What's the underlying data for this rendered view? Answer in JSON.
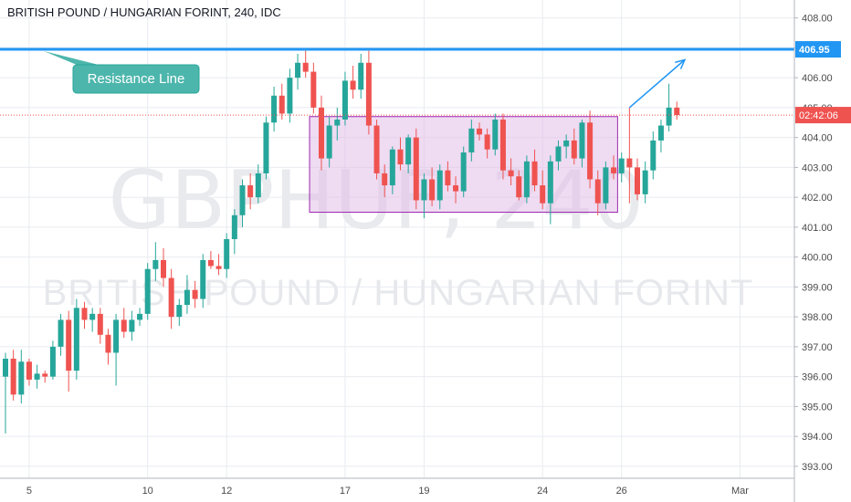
{
  "header": {
    "title": "BRITISH POUND / HUNGARIAN FORINT, 240, IDC"
  },
  "watermark": {
    "symbol": "GBPHUF, 240",
    "name": "BRITISH POUND / HUNGARIAN FORINT"
  },
  "colors": {
    "up": "#26a69a",
    "down": "#ef5350",
    "resistance": "#2196f3",
    "box_fill": "#e1bee7",
    "box_border": "#9c27b0",
    "price_line": "#ef5350",
    "callout": "#4db6ac",
    "grid": "#e9ebf0",
    "axis_text": "#4a4a4a"
  },
  "chart_data": {
    "type": "candlestick",
    "y_axis": {
      "ylim": [
        392.6,
        408.6
      ],
      "ticks": [
        "393.00",
        "394.00",
        "395.00",
        "396.00",
        "397.00",
        "398.00",
        "399.00",
        "400.00",
        "401.00",
        "402.00",
        "403.00",
        "404.00",
        "405.00",
        "406.00",
        "407.00",
        "408.00"
      ]
    },
    "x_axis": {
      "ticks": [
        {
          "label": "5",
          "bar": 3
        },
        {
          "label": "10",
          "bar": 18
        },
        {
          "label": "12",
          "bar": 28
        },
        {
          "label": "17",
          "bar": 43
        },
        {
          "label": "19",
          "bar": 53
        },
        {
          "label": "24",
          "bar": 68
        },
        {
          "label": "26",
          "bar": 78
        },
        {
          "label": "Mar",
          "bar": 93
        }
      ],
      "total_bars": 101
    },
    "resistance": {
      "label": "Resistance Line",
      "price": 406.95,
      "price_label": "406.95"
    },
    "current_price": {
      "price": 404.75,
      "countdown": "02:42:06"
    },
    "range_box": {
      "start_bar": 38.5,
      "end_bar": 77.5,
      "top": 404.7,
      "bottom": 401.5
    },
    "arrow": {
      "from_bar": 79,
      "from_price": 405.0,
      "to_bar": 86,
      "to_price": 406.6
    },
    "candles": [
      [
        396.0,
        396.8,
        394.1,
        396.6
      ],
      [
        396.6,
        396.9,
        395.2,
        395.4
      ],
      [
        395.4,
        396.9,
        395.1,
        396.5
      ],
      [
        396.5,
        396.6,
        395.7,
        395.9
      ],
      [
        395.9,
        396.4,
        395.6,
        396.1
      ],
      [
        396.1,
        396.2,
        395.8,
        396.0
      ],
      [
        396.0,
        397.2,
        395.9,
        397.0
      ],
      [
        397.0,
        398.1,
        396.7,
        397.9
      ],
      [
        397.9,
        398.2,
        395.5,
        396.2
      ],
      [
        396.2,
        398.6,
        395.9,
        398.3
      ],
      [
        398.3,
        398.5,
        397.6,
        397.9
      ],
      [
        397.9,
        398.3,
        397.5,
        398.1
      ],
      [
        398.1,
        398.3,
        397.1,
        397.4
      ],
      [
        397.4,
        397.6,
        396.4,
        396.8
      ],
      [
        396.8,
        398.1,
        395.7,
        397.9
      ],
      [
        397.9,
        398.3,
        397.3,
        397.5
      ],
      [
        397.5,
        398.2,
        397.2,
        397.9
      ],
      [
        397.9,
        398.3,
        397.7,
        398.1
      ],
      [
        398.1,
        399.8,
        397.9,
        399.6
      ],
      [
        399.6,
        400.5,
        399.2,
        399.9
      ],
      [
        399.9,
        400.3,
        399.0,
        399.3
      ],
      [
        399.3,
        399.6,
        397.6,
        398.0
      ],
      [
        398.0,
        398.6,
        397.7,
        398.4
      ],
      [
        398.4,
        399.4,
        398.1,
        398.9
      ],
      [
        398.9,
        399.2,
        398.3,
        398.6
      ],
      [
        398.6,
        400.1,
        398.3,
        399.9
      ],
      [
        399.9,
        400.2,
        399.6,
        399.7
      ],
      [
        399.7,
        400.1,
        399.4,
        399.6
      ],
      [
        399.6,
        400.8,
        399.3,
        400.6
      ],
      [
        400.6,
        401.6,
        400.1,
        401.4
      ],
      [
        401.4,
        402.6,
        401.0,
        402.4
      ],
      [
        402.4,
        402.8,
        401.6,
        402.0
      ],
      [
        402.0,
        403.1,
        401.8,
        402.8
      ],
      [
        402.8,
        404.7,
        402.6,
        404.5
      ],
      [
        404.5,
        405.7,
        404.2,
        405.4
      ],
      [
        405.4,
        405.8,
        404.6,
        404.8
      ],
      [
        404.8,
        406.3,
        404.5,
        406.0
      ],
      [
        406.0,
        406.8,
        405.6,
        406.5
      ],
      [
        406.5,
        406.9,
        406.0,
        406.2
      ],
      [
        406.2,
        406.5,
        404.8,
        405.0
      ],
      [
        405.0,
        405.4,
        402.9,
        403.3
      ],
      [
        403.3,
        404.7,
        403.0,
        404.4
      ],
      [
        404.4,
        405.0,
        403.9,
        404.6
      ],
      [
        404.6,
        406.2,
        404.4,
        405.9
      ],
      [
        405.9,
        406.4,
        405.3,
        405.6
      ],
      [
        405.6,
        406.8,
        405.3,
        406.5
      ],
      [
        406.5,
        406.9,
        404.1,
        404.4
      ],
      [
        404.4,
        404.6,
        402.6,
        402.8
      ],
      [
        402.8,
        403.1,
        402.0,
        402.4
      ],
      [
        402.4,
        403.7,
        402.1,
        403.6
      ],
      [
        403.6,
        404.0,
        402.9,
        403.1
      ],
      [
        403.1,
        404.1,
        402.8,
        404.0
      ],
      [
        404.0,
        404.3,
        401.6,
        401.9
      ],
      [
        401.9,
        402.8,
        401.3,
        402.6
      ],
      [
        402.6,
        403.0,
        401.7,
        401.9
      ],
      [
        401.9,
        403.1,
        401.6,
        402.9
      ],
      [
        402.9,
        403.2,
        402.2,
        402.4
      ],
      [
        402.4,
        402.7,
        401.8,
        402.2
      ],
      [
        402.2,
        403.7,
        402.0,
        403.5
      ],
      [
        403.5,
        404.6,
        403.2,
        404.3
      ],
      [
        404.3,
        404.5,
        403.9,
        404.1
      ],
      [
        404.1,
        404.3,
        403.3,
        403.6
      ],
      [
        403.6,
        404.8,
        403.4,
        404.6
      ],
      [
        404.6,
        404.8,
        402.6,
        402.9
      ],
      [
        402.9,
        403.3,
        402.4,
        402.7
      ],
      [
        402.7,
        402.9,
        401.9,
        402.0
      ],
      [
        402.0,
        403.4,
        401.8,
        403.2
      ],
      [
        403.2,
        403.6,
        402.2,
        402.4
      ],
      [
        402.4,
        402.9,
        401.6,
        401.8
      ],
      [
        401.8,
        403.4,
        401.1,
        403.2
      ],
      [
        403.2,
        403.9,
        402.9,
        403.7
      ],
      [
        403.7,
        404.1,
        403.3,
        403.9
      ],
      [
        403.9,
        404.3,
        403.1,
        403.3
      ],
      [
        403.3,
        404.6,
        403.0,
        404.5
      ],
      [
        404.5,
        404.9,
        402.3,
        402.6
      ],
      [
        402.6,
        402.9,
        401.4,
        401.8
      ],
      [
        401.8,
        403.2,
        401.6,
        403.0
      ],
      [
        403.0,
        403.4,
        402.6,
        402.8
      ],
      [
        402.8,
        403.5,
        402.5,
        403.3
      ],
      [
        403.3,
        405.0,
        401.8,
        403.0
      ],
      [
        403.0,
        403.3,
        401.9,
        402.1
      ],
      [
        402.1,
        403.2,
        401.8,
        402.9
      ],
      [
        402.9,
        404.2,
        402.6,
        403.9
      ],
      [
        403.9,
        404.6,
        403.5,
        404.4
      ],
      [
        404.4,
        405.8,
        404.2,
        405.0
      ],
      [
        405.0,
        405.2,
        404.6,
        404.75
      ]
    ]
  }
}
